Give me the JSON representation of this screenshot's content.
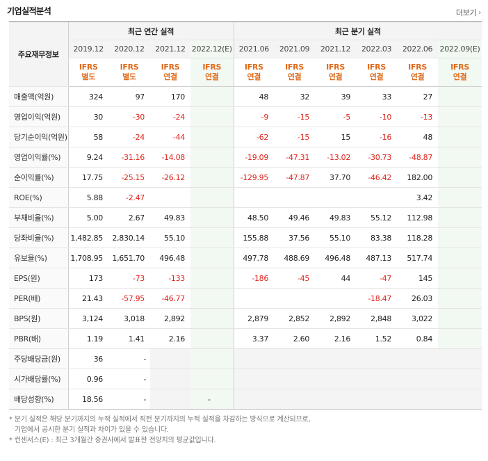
{
  "section_title": "기업실적분석",
  "more_label": "더보기",
  "header": {
    "row_head": "주요재무정보",
    "annual_group": "최근 연간 실적",
    "quarter_group": "최근 분기 실적",
    "periods": [
      "2019.12",
      "2020.12",
      "2021.12",
      "2022.12(E)",
      "2021.06",
      "2021.09",
      "2021.12",
      "2022.03",
      "2022.06",
      "2022.09(E)"
    ],
    "standards": [
      "IFRS\n별도",
      "IFRS\n별도",
      "IFRS\n연결",
      "IFRS\n연결",
      "IFRS\n연결",
      "IFRS\n연결",
      "IFRS\n연결",
      "IFRS\n연결",
      "IFRS\n연결",
      "IFRS\n연결"
    ]
  },
  "rows": [
    {
      "label": "매출액(억원)",
      "values": [
        "324",
        "97",
        "170",
        "",
        "48",
        "32",
        "39",
        "33",
        "27",
        ""
      ]
    },
    {
      "label": "영업이익(억원)",
      "values": [
        "30",
        "-30",
        "-24",
        "",
        "-9",
        "-15",
        "-5",
        "-10",
        "-13",
        ""
      ]
    },
    {
      "label": "당기순이익(억원)",
      "values": [
        "58",
        "-24",
        "-44",
        "",
        "-62",
        "-15",
        "15",
        "-16",
        "48",
        ""
      ]
    },
    {
      "label": "영업이익률(%)",
      "values": [
        "9.24",
        "-31.16",
        "-14.08",
        "",
        "-19.09",
        "-47.31",
        "-13.02",
        "-30.73",
        "-48.87",
        ""
      ]
    },
    {
      "label": "순이익률(%)",
      "values": [
        "17.75",
        "-25.15",
        "-26.12",
        "",
        "-129.95",
        "-47.87",
        "37.70",
        "-46.42",
        "182.00",
        ""
      ]
    },
    {
      "label": "ROE(%)",
      "values": [
        "5.88",
        "-2.47",
        "",
        "",
        "",
        "",
        "",
        "",
        "3.42",
        ""
      ]
    },
    {
      "label": "부채비율(%)",
      "values": [
        "5.00",
        "2.67",
        "49.83",
        "",
        "48.50",
        "49.46",
        "49.83",
        "55.12",
        "112.98",
        ""
      ]
    },
    {
      "label": "당좌비율(%)",
      "values": [
        "1,482.85",
        "2,830.14",
        "55.10",
        "",
        "155.88",
        "37.56",
        "55.10",
        "83.38",
        "118.28",
        ""
      ]
    },
    {
      "label": "유보율(%)",
      "values": [
        "1,708.95",
        "1,651.70",
        "496.48",
        "",
        "497.78",
        "488.69",
        "496.48",
        "487.13",
        "517.74",
        ""
      ]
    },
    {
      "label": "EPS(원)",
      "values": [
        "173",
        "-73",
        "-133",
        "",
        "-186",
        "-45",
        "44",
        "-47",
        "145",
        ""
      ]
    },
    {
      "label": "PER(배)",
      "values": [
        "21.43",
        "-57.95",
        "-46.77",
        "",
        "",
        "",
        "",
        "-18.47",
        "26.03",
        ""
      ]
    },
    {
      "label": "BPS(원)",
      "values": [
        "3,124",
        "3,018",
        "2,892",
        "",
        "2,879",
        "2,852",
        "2,892",
        "2,848",
        "3,022",
        ""
      ]
    },
    {
      "label": "PBR(배)",
      "values": [
        "1.19",
        "1.41",
        "2.16",
        "",
        "3.37",
        "2.60",
        "2.16",
        "1.52",
        "0.84",
        ""
      ]
    },
    {
      "label": "주당배당금(원)",
      "values": [
        "36",
        "-",
        "",
        ""
      ]
    },
    {
      "label": "시가배당률(%)",
      "values": [
        "0.96",
        "-",
        "",
        ""
      ]
    },
    {
      "label": "배당성향(%)",
      "values": [
        "18.56",
        "-",
        "",
        "-"
      ]
    }
  ],
  "notes": [
    "* 분기 실적은 해당 분기까지의 누적 실적에서 직전 분기까지의 누적 실적을 차감하는 방식으로 계산되므로,",
    "기업에서 공시한 분기 실적과 차이가 있을 수 있습니다.",
    "* 컨센서스(E) : 최근 3개월간 증권사에서 발표한 전망치의 평균값입니다."
  ]
}
